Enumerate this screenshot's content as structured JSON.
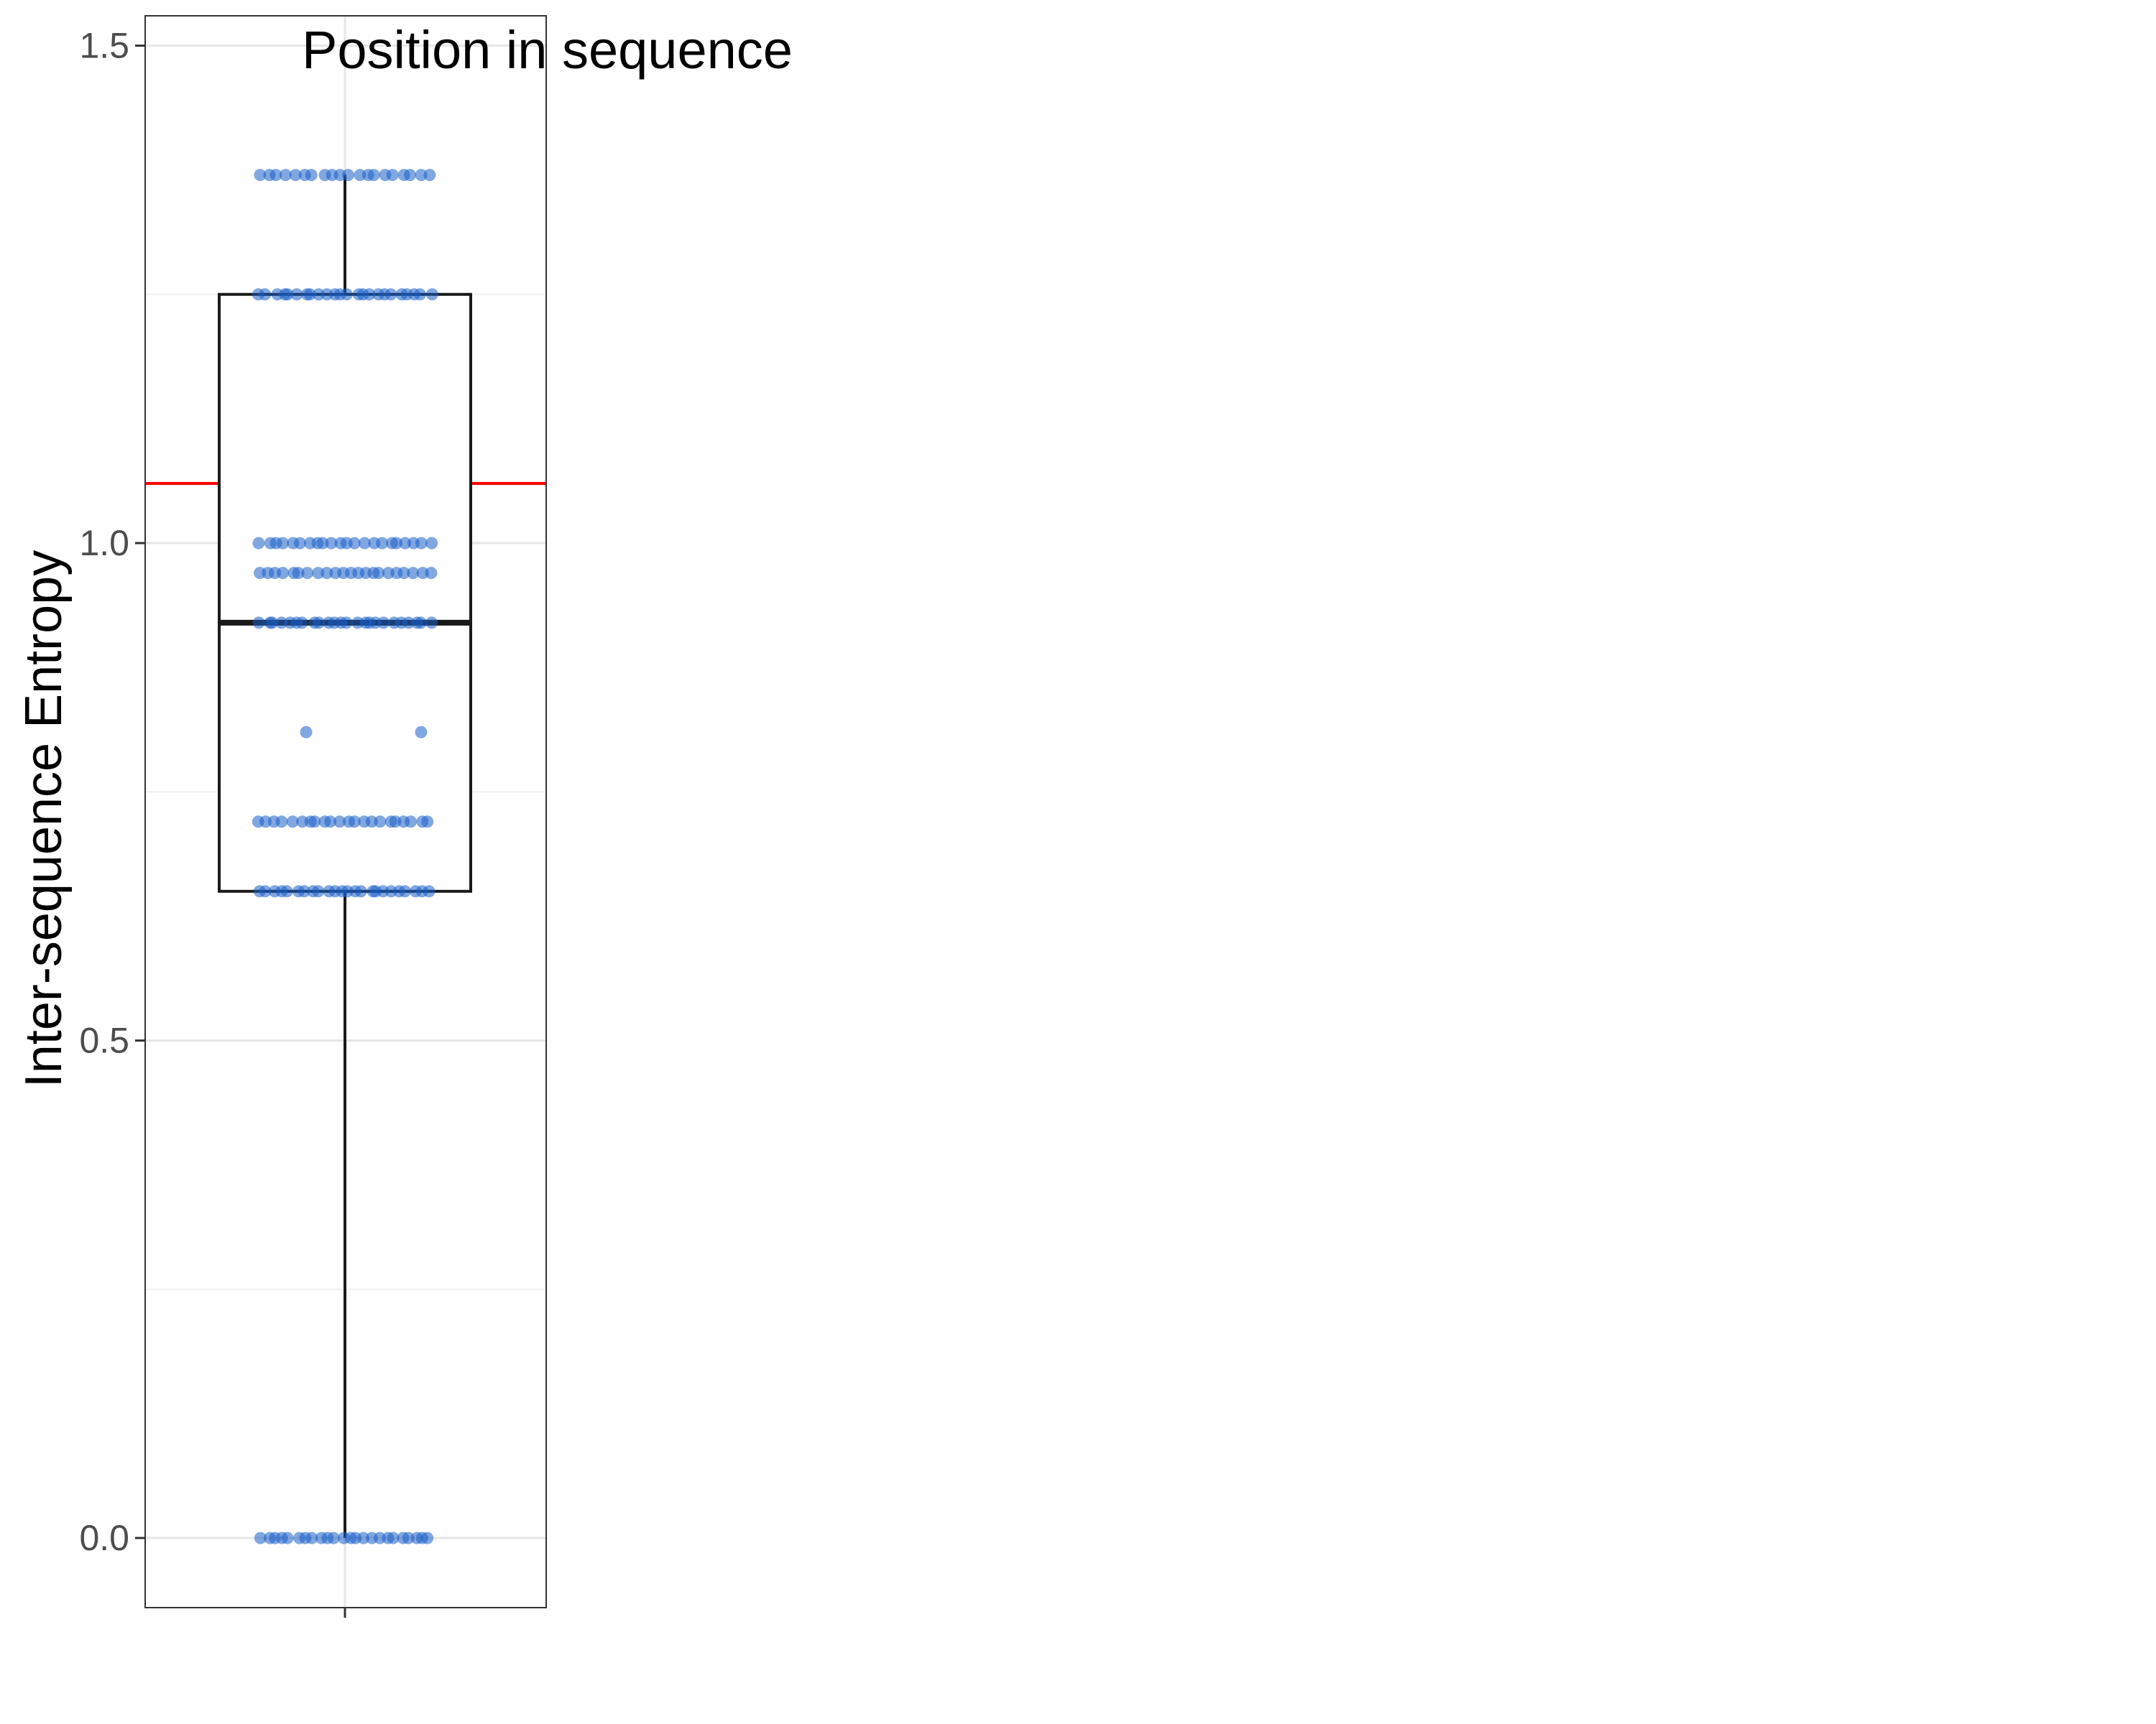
{
  "chart_data": {
    "type": "box",
    "title": "Position in sequence",
    "xlabel": "",
    "ylabel": "Inter-sequence Entropy",
    "ylim": [
      -0.07,
      1.53
    ],
    "yticks": [
      0.0,
      0.5,
      1.0,
      1.5
    ],
    "ytick_labels": [
      "0.0",
      "0.5",
      "1.0",
      "1.5"
    ],
    "grid": true,
    "box": {
      "min": 0.0,
      "q1": 0.65,
      "median": 0.92,
      "q3": 1.25,
      "max": 1.37
    },
    "reference_line": {
      "y": 1.06,
      "color": "#ff0000"
    },
    "jitter_levels": [
      {
        "y": 1.37,
        "count": 20
      },
      {
        "y": 1.25,
        "count": 24
      },
      {
        "y": 1.0,
        "count": 22
      },
      {
        "y": 0.97,
        "count": 22
      },
      {
        "y": 0.92,
        "count": 24
      },
      {
        "y": 0.81,
        "count": 2
      },
      {
        "y": 0.72,
        "count": 22
      },
      {
        "y": 0.65,
        "count": 24
      },
      {
        "y": 0.0,
        "count": 24
      }
    ],
    "colors": {
      "points": "#1a5fc8",
      "box": "#1a1a1a",
      "grid": "#e6e6e6",
      "panel_border": "#333333",
      "reference_line": "#ff0000"
    }
  }
}
